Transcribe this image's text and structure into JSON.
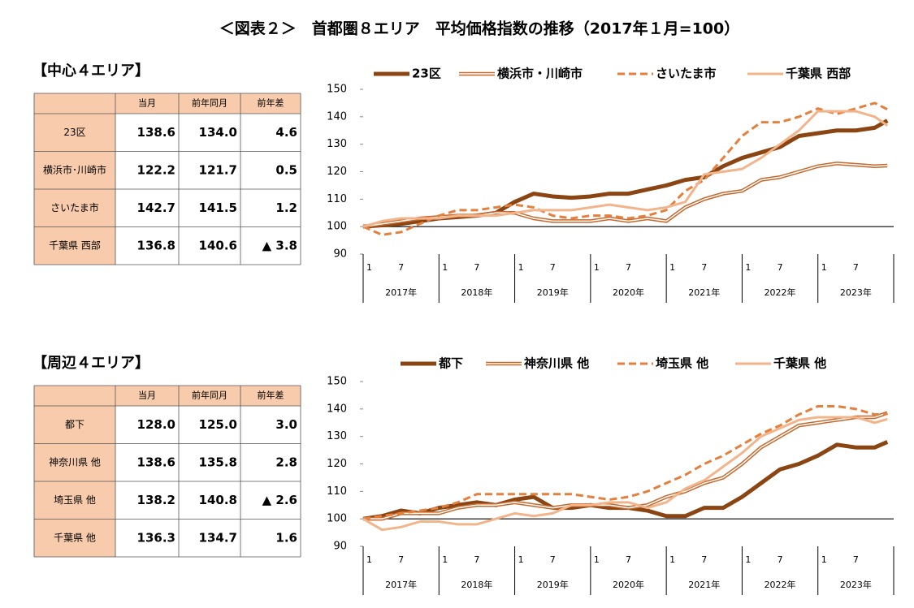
{
  "title": "＜図表２＞　首都圏８エリア　平均価格指数の推移（2017年１月=100）",
  "tables": [
    {
      "label": "【中心４エリア】",
      "header": [
        "当月",
        "前年同月",
        "前年差"
      ],
      "rows": [
        [
          "23区",
          "138.6",
          "134.0",
          "4.6"
        ],
        [
          "横浜市･川崎市",
          "122.2",
          "121.7",
          "0.5"
        ],
        [
          "さいたま市",
          "142.7",
          "141.5",
          "1.2"
        ],
        [
          "千葉県 西部",
          "136.8",
          "140.6",
          "▲ 3.8"
        ]
      ]
    },
    {
      "label": "【周辺４エリア】",
      "header": [
        "当月",
        "前年同月",
        "前年差"
      ],
      "rows": [
        [
          "都下",
          "128.0",
          "125.0",
          "3.0"
        ],
        [
          "神奈川県 他",
          "138.6",
          "135.8",
          "2.8"
        ],
        [
          "埼玉県 他",
          "138.2",
          "140.8",
          "▲ 2.6"
        ],
        [
          "千葉県 他",
          "136.3",
          "134.7",
          "1.6"
        ]
      ]
    }
  ],
  "chart_data": [
    {
      "type": "line",
      "ylim": [
        90,
        150
      ],
      "yticks": [
        90,
        100,
        110,
        120,
        130,
        140,
        150
      ],
      "reference_line": 100,
      "years": [
        "2017年",
        "2018年",
        "2019年",
        "2020年",
        "2021年",
        "2022年",
        "2023年"
      ],
      "month_ticks": [
        1,
        7
      ],
      "x": [
        "2017-01",
        "2017-04",
        "2017-07",
        "2017-10",
        "2018-01",
        "2018-04",
        "2018-07",
        "2018-10",
        "2019-01",
        "2019-04",
        "2019-07",
        "2019-10",
        "2020-01",
        "2020-04",
        "2020-07",
        "2020-10",
        "2021-01",
        "2021-04",
        "2021-07",
        "2021-10",
        "2022-01",
        "2022-04",
        "2022-07",
        "2022-10",
        "2023-01",
        "2023-04",
        "2023-07",
        "2023-10",
        "2023-12"
      ],
      "series": [
        {
          "name": "23区",
          "color": "#8b4513",
          "style": "thick",
          "values": [
            100,
            100.5,
            101,
            102,
            103,
            103.5,
            104,
            105,
            109,
            112,
            111,
            110.5,
            111,
            112,
            112,
            113.5,
            115,
            117,
            118,
            122,
            125,
            127,
            129,
            133,
            134,
            135,
            135,
            136,
            138.6
          ]
        },
        {
          "name": "横浜市・川崎市",
          "color": "#c8682c",
          "style": "double",
          "values": [
            100,
            101,
            102,
            103,
            103.5,
            104,
            104,
            105,
            105,
            103,
            102,
            102,
            102,
            103,
            102,
            103,
            102,
            107,
            110,
            112,
            113,
            117,
            118,
            120,
            122,
            123,
            122.5,
            122,
            122.2
          ]
        },
        {
          "name": "さいたま市",
          "color": "#e47f3c",
          "style": "dashed",
          "values": [
            100,
            97,
            98,
            101,
            104,
            106,
            106,
            107,
            108,
            107,
            104,
            103,
            104,
            104,
            103,
            104,
            106,
            113,
            117,
            125,
            133,
            138,
            138,
            140,
            143,
            141,
            143,
            145,
            142.7
          ]
        },
        {
          "name": "千葉県 西部",
          "color": "#f2b48a",
          "style": "solid",
          "values": [
            100,
            102,
            103,
            103,
            103,
            104,
            104,
            104,
            105,
            106,
            106,
            106,
            107,
            108,
            107,
            106,
            107,
            109,
            119,
            120,
            121,
            125,
            130,
            135,
            142,
            142,
            142,
            140,
            136.8
          ]
        }
      ]
    },
    {
      "type": "line",
      "ylim": [
        90,
        150
      ],
      "yticks": [
        90,
        100,
        110,
        120,
        130,
        140,
        150
      ],
      "reference_line": 100,
      "years": [
        "2017年",
        "2018年",
        "2019年",
        "2020年",
        "2021年",
        "2022年",
        "2023年"
      ],
      "month_ticks": [
        1,
        7
      ],
      "x": [
        "2017-01",
        "2017-04",
        "2017-07",
        "2017-10",
        "2018-01",
        "2018-04",
        "2018-07",
        "2018-10",
        "2019-01",
        "2019-04",
        "2019-07",
        "2019-10",
        "2020-01",
        "2020-04",
        "2020-07",
        "2020-10",
        "2021-01",
        "2021-04",
        "2021-07",
        "2021-10",
        "2022-01",
        "2022-04",
        "2022-07",
        "2022-10",
        "2023-01",
        "2023-04",
        "2023-07",
        "2023-10",
        "2023-12"
      ],
      "series": [
        {
          "name": "都下",
          "color": "#8b4513",
          "style": "thick",
          "values": [
            100,
            101,
            103,
            102,
            104,
            105,
            106,
            105,
            107,
            108,
            104,
            104,
            105,
            104,
            104,
            103,
            101,
            101,
            104,
            104,
            108,
            113,
            118,
            120,
            123,
            127,
            126,
            126,
            128.0
          ]
        },
        {
          "name": "神奈川県 他",
          "color": "#c8682c",
          "style": "double",
          "values": [
            100,
            100,
            102,
            102,
            102,
            104,
            105,
            105,
            106,
            105,
            104,
            105,
            105,
            105,
            104,
            105,
            108,
            110,
            113,
            115,
            120,
            126,
            130,
            134,
            135,
            136,
            137,
            137,
            138.6
          ]
        },
        {
          "name": "埼玉県 他",
          "color": "#e47f3c",
          "style": "dashed",
          "values": [
            100,
            101,
            102,
            103,
            104,
            106,
            109,
            109,
            109,
            109,
            109,
            109,
            108,
            107,
            108,
            110,
            113,
            116,
            120,
            123,
            127,
            131,
            134,
            138,
            141,
            141,
            140,
            138,
            138.2
          ]
        },
        {
          "name": "千葉県 他",
          "color": "#f2b48a",
          "style": "solid",
          "values": [
            100,
            96,
            97,
            99,
            99,
            98,
            98,
            100,
            102,
            101,
            102,
            105,
            105,
            106,
            106,
            104,
            106,
            111,
            114,
            119,
            124,
            130,
            133,
            136,
            137,
            137,
            137,
            135,
            136.3
          ]
        }
      ]
    }
  ]
}
